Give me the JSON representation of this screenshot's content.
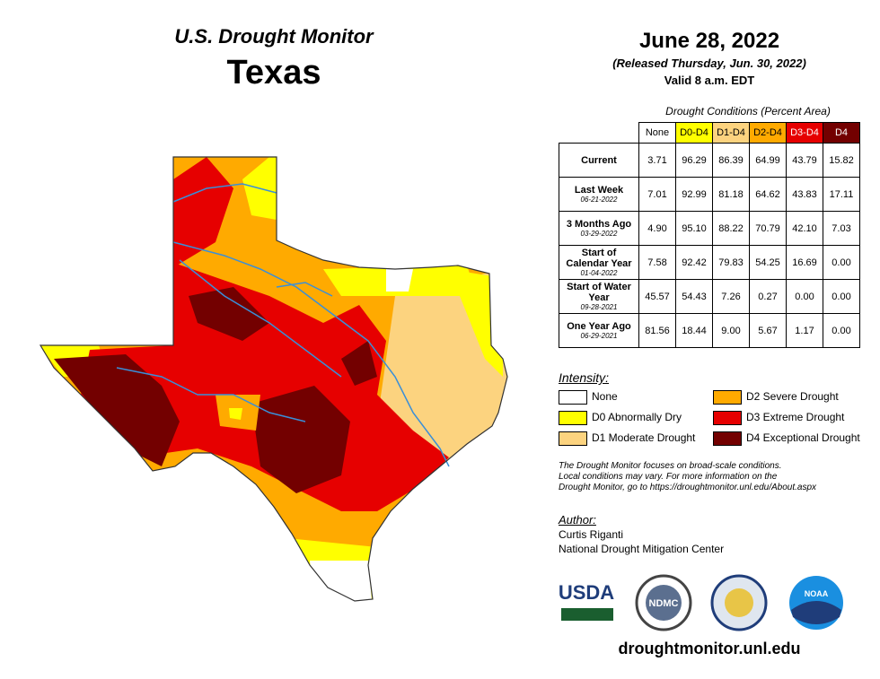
{
  "header": {
    "title": "U.S. Drought Monitor",
    "state": "Texas",
    "date": "June 28, 2022",
    "released": "(Released Thursday, Jun. 30, 2022)",
    "valid": "Valid 8 a.m. EDT"
  },
  "table": {
    "caption": "Drought Conditions (Percent Area)",
    "columns": [
      {
        "label": "None",
        "color": "#ffffff",
        "text": "#000000"
      },
      {
        "label": "D0-D4",
        "color": "#ffff00",
        "text": "#000000"
      },
      {
        "label": "D1-D4",
        "color": "#fcd37f",
        "text": "#000000"
      },
      {
        "label": "D2-D4",
        "color": "#ffaa00",
        "text": "#000000"
      },
      {
        "label": "D3-D4",
        "color": "#e60000",
        "text": "#ffffff"
      },
      {
        "label": "D4",
        "color": "#730000",
        "text": "#ffffff"
      }
    ],
    "rows": [
      {
        "label": "Current",
        "values": [
          "3.71",
          "96.29",
          "86.39",
          "64.99",
          "43.79",
          "15.82"
        ]
      },
      {
        "label": "Last Week",
        "date": "06-21-2022",
        "values": [
          "7.01",
          "92.99",
          "81.18",
          "64.62",
          "43.83",
          "17.11"
        ]
      },
      {
        "label": "3 Months Ago",
        "date": "03-29-2022",
        "values": [
          "4.90",
          "95.10",
          "88.22",
          "70.79",
          "42.10",
          "7.03"
        ]
      },
      {
        "label": "Start of Calendar Year",
        "date": "01-04-2022",
        "values": [
          "7.58",
          "92.42",
          "79.83",
          "54.25",
          "16.69",
          "0.00"
        ]
      },
      {
        "label": "Start of Water Year",
        "date": "09-28-2021",
        "values": [
          "45.57",
          "54.43",
          "7.26",
          "0.27",
          "0.00",
          "0.00"
        ]
      },
      {
        "label": "One Year Ago",
        "date": "06-29-2021",
        "values": [
          "81.56",
          "18.44",
          "9.00",
          "5.67",
          "1.17",
          "0.00"
        ]
      }
    ]
  },
  "legend": {
    "title": "Intensity:",
    "items": [
      {
        "label": "None",
        "color": "#ffffff"
      },
      {
        "label": "D2 Severe Drought",
        "color": "#ffaa00"
      },
      {
        "label": "D0 Abnormally Dry",
        "color": "#ffff00"
      },
      {
        "label": "D3 Extreme Drought",
        "color": "#e60000"
      },
      {
        "label": "D1 Moderate Drought",
        "color": "#fcd37f"
      },
      {
        "label": "D4 Exceptional Drought",
        "color": "#730000"
      }
    ]
  },
  "note": [
    "The Drought Monitor focuses on broad-scale conditions.",
    "Local conditions may vary. For more information on the",
    "Drought Monitor, go to https://droughtmonitor.unl.edu/About.aspx"
  ],
  "author": {
    "title": "Author:",
    "lines": [
      "Curtis Riganti",
      "National Drought Mitigation Center"
    ]
  },
  "logos": [
    "USDA",
    "NDMC",
    "NOAA"
  ],
  "url": "droughtmonitor.unl.edu"
}
